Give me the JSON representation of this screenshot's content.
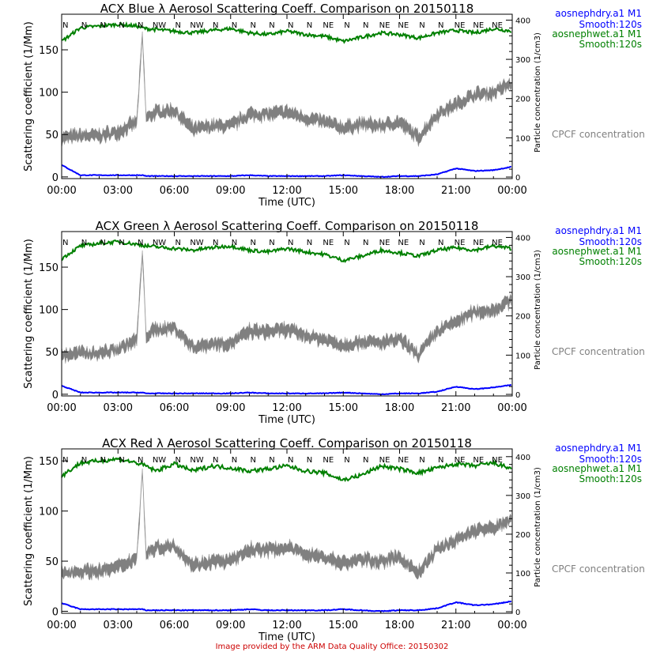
{
  "footer": "Image provided by the ARM Data Quality Office: 20150302",
  "colors": {
    "dry": "#0000ff",
    "wet": "#008000",
    "cpc": "#808080",
    "footer": "#cc0000"
  },
  "legend": {
    "dry_name": "aosnephdry.a1 M1",
    "dry_smooth": "Smooth:120s",
    "wet_name": "aosnephwet.a1 M1",
    "wet_smooth": "Smooth:120s",
    "cpc_name": "CPCF concentration"
  },
  "chart_data": [
    {
      "type": "line",
      "title": "ACX Blue λ Aerosol Scattering Coeff. Comparison on 20150118",
      "xlabel": "Time (UTC)",
      "ylabel": "Scattering coefficient (1/Mm)",
      "y2label": "Particle concentration (1/cm3)",
      "xticks": [
        "00:00",
        "03:00",
        "06:00",
        "09:00",
        "12:00",
        "15:00",
        "18:00",
        "21:00",
        "00:00"
      ],
      "yticks": [
        0,
        50,
        100,
        150
      ],
      "y2ticks": [
        0,
        100,
        200,
        300,
        400
      ],
      "ylim": [
        -2,
        192
      ],
      "y2lim": [
        -4,
        415
      ],
      "wind_direction": [
        "N",
        "N",
        "N",
        "N",
        "N",
        "NW",
        "N",
        "NW",
        "N",
        "N",
        "N",
        "N",
        "N",
        "N",
        "NE",
        "N",
        "N",
        "NE",
        "NE",
        "N",
        "N",
        "NE",
        "NE",
        "NE"
      ],
      "x_hours": [
        0,
        1,
        2,
        3,
        4,
        4.3,
        4.5,
        5,
        6,
        7,
        8,
        9,
        10,
        11,
        12,
        13,
        14,
        15,
        16,
        17,
        18,
        19,
        20,
        21,
        22,
        23,
        24
      ],
      "series": [
        {
          "name": "aosnephdry.a1 M1",
          "axis": "left",
          "values": [
            14,
            2,
            2,
            2,
            2,
            2,
            1,
            1,
            1,
            1,
            1,
            1,
            2,
            1,
            1,
            1,
            1,
            2,
            1,
            0,
            1,
            1,
            3,
            10,
            7,
            8,
            12
          ]
        },
        {
          "name": "aosnephwet.a1 M1",
          "axis": "left",
          "values": [
            160,
            176,
            178,
            180,
            178,
            176,
            175,
            174,
            172,
            170,
            173,
            175,
            170,
            168,
            172,
            168,
            166,
            160,
            165,
            170,
            168,
            164,
            170,
            173,
            170,
            175,
            172
          ]
        },
        {
          "name": "CPCF concentration",
          "axis": "right",
          "values": [
            100,
            105,
            105,
            115,
            140,
            360,
            150,
            165,
            170,
            120,
            130,
            130,
            160,
            160,
            165,
            150,
            140,
            125,
            135,
            130,
            140,
            100,
            160,
            185,
            210,
            215,
            240
          ]
        }
      ]
    },
    {
      "type": "line",
      "title": "ACX Green λ Aerosol Scattering Coeff. Comparison on 20150118",
      "xlabel": "Time (UTC)",
      "ylabel": "Scattering coefficient (1/Mm)",
      "y2label": "Particle concentration (1/cm3)",
      "xticks": [
        "00:00",
        "03:00",
        "06:00",
        "09:00",
        "12:00",
        "15:00",
        "18:00",
        "21:00",
        "00:00"
      ],
      "yticks": [
        0,
        50,
        100,
        150
      ],
      "y2ticks": [
        0,
        100,
        200,
        300,
        400
      ],
      "ylim": [
        -2,
        192
      ],
      "y2lim": [
        -4,
        415
      ],
      "wind_direction": [
        "N",
        "N",
        "N",
        "N",
        "N",
        "NW",
        "N",
        "NW",
        "N",
        "N",
        "N",
        "N",
        "N",
        "N",
        "NE",
        "N",
        "N",
        "NE",
        "NE",
        "N",
        "N",
        "NE",
        "NE",
        "NE"
      ],
      "x_hours": [
        0,
        1,
        2,
        3,
        4,
        4.3,
        4.5,
        5,
        6,
        7,
        8,
        9,
        10,
        11,
        12,
        13,
        14,
        15,
        16,
        17,
        18,
        19,
        20,
        21,
        22,
        23,
        24
      ],
      "series": [
        {
          "name": "aosnephdry.a1 M1",
          "axis": "left",
          "values": [
            10,
            2,
            2,
            2,
            2,
            2,
            1,
            1,
            1,
            1,
            1,
            1,
            2,
            1,
            1,
            1,
            1,
            2,
            1,
            0,
            1,
            1,
            3,
            9,
            6,
            8,
            11
          ]
        },
        {
          "name": "aosnephwet.a1 M1",
          "axis": "left",
          "values": [
            160,
            175,
            178,
            180,
            177,
            176,
            175,
            174,
            172,
            170,
            173,
            175,
            170,
            168,
            172,
            168,
            165,
            158,
            163,
            170,
            167,
            163,
            170,
            173,
            170,
            175,
            172
          ]
        },
        {
          "name": "CPCF concentration",
          "axis": "right",
          "values": [
            100,
            105,
            105,
            115,
            140,
            360,
            150,
            165,
            170,
            120,
            130,
            130,
            160,
            160,
            165,
            150,
            140,
            125,
            135,
            130,
            140,
            100,
            160,
            185,
            210,
            215,
            240
          ]
        }
      ]
    },
    {
      "type": "line",
      "title": "ACX Red λ Aerosol Scattering Coeff. Comparison on 20150118",
      "xlabel": "Time (UTC)",
      "ylabel": "Scattering coefficient (1/Mm)",
      "y2label": "Particle concentration (1/cm3)",
      "xticks": [
        "00:00",
        "03:00",
        "06:00",
        "09:00",
        "12:00",
        "15:00",
        "18:00",
        "21:00",
        "00:00"
      ],
      "yticks": [
        0,
        50,
        100,
        150
      ],
      "y2ticks": [
        0,
        100,
        200,
        300,
        400
      ],
      "ylim": [
        -2,
        162
      ],
      "y2lim": [
        -4,
        420
      ],
      "wind_direction": [
        "N",
        "N",
        "N",
        "N",
        "N",
        "NW",
        "N",
        "NW",
        "N",
        "N",
        "N",
        "N",
        "N",
        "N",
        "NE",
        "N",
        "N",
        "NE",
        "NE",
        "N",
        "N",
        "NE",
        "NE",
        "NE"
      ],
      "x_hours": [
        0,
        1,
        2,
        3,
        4,
        4.3,
        4.5,
        5,
        6,
        7,
        8,
        9,
        10,
        11,
        12,
        13,
        14,
        15,
        16,
        17,
        18,
        19,
        20,
        21,
        22,
        23,
        24
      ],
      "series": [
        {
          "name": "aosnephdry.a1 M1",
          "axis": "left",
          "values": [
            8,
            2,
            2,
            2,
            2,
            2,
            1,
            1,
            1,
            1,
            1,
            1,
            2,
            1,
            1,
            1,
            1,
            2,
            1,
            0,
            1,
            1,
            3,
            9,
            6,
            7,
            10
          ]
        },
        {
          "name": "aosnephwet.a1 M1",
          "axis": "left",
          "values": [
            135,
            148,
            150,
            152,
            148,
            146,
            145,
            140,
            147,
            140,
            145,
            143,
            140,
            142,
            145,
            140,
            138,
            131,
            136,
            145,
            142,
            138,
            143,
            147,
            145,
            148,
            142
          ]
        },
        {
          "name": "CPCF concentration",
          "axis": "right",
          "values": [
            100,
            105,
            105,
            115,
            140,
            360,
            150,
            165,
            170,
            120,
            130,
            130,
            160,
            160,
            165,
            150,
            140,
            125,
            135,
            130,
            140,
            100,
            160,
            185,
            210,
            215,
            240
          ]
        }
      ]
    }
  ]
}
